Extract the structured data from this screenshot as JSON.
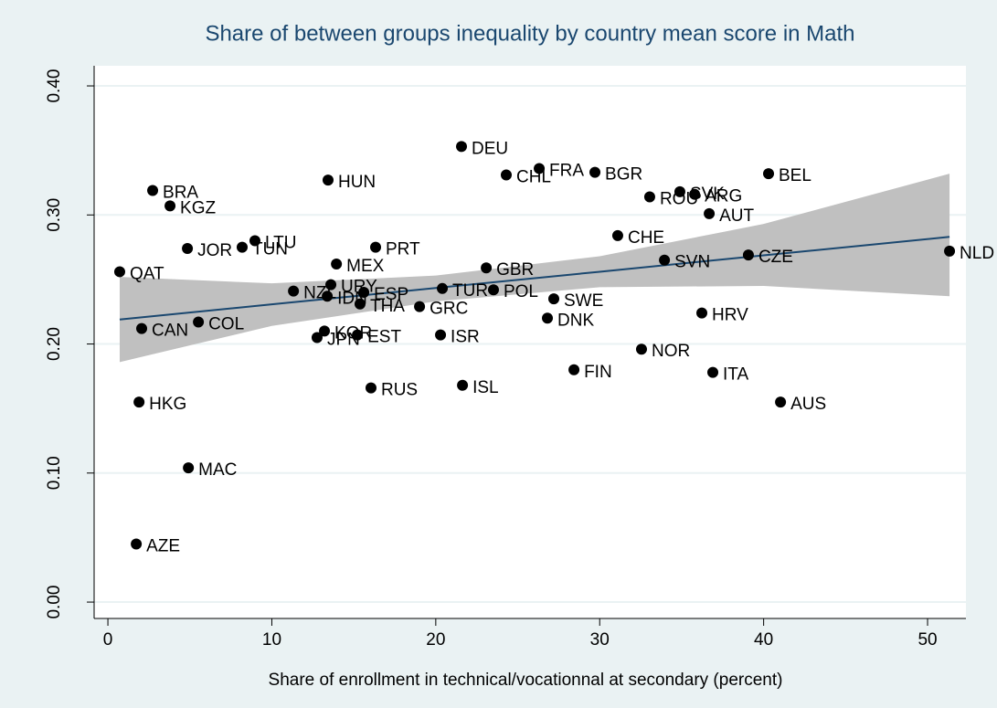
{
  "chart_data": {
    "type": "scatter",
    "title": "Share of between groups inequality by country mean score in Math",
    "xlabel": "Share of enrollment in technical/vocationnal at secondary (percent)",
    "xlim": [
      -0.84,
      52.34
    ],
    "ylim": [
      -0.0127,
      0.4156
    ],
    "xticks": [
      0,
      10,
      20,
      30,
      40,
      50
    ],
    "yticks": [
      {
        "value": 0,
        "label": "0.00"
      },
      {
        "value": 0.1,
        "label": "0.10"
      },
      {
        "value": 0.2,
        "label": "0.20"
      },
      {
        "value": 0.3,
        "label": "0.30"
      },
      {
        "value": 0.4,
        "label": "0.40"
      }
    ],
    "grid": true,
    "color": "#000000",
    "labels": [
      "BRA",
      "KGZ",
      "HUN",
      "DEU",
      "CHL",
      "FRA",
      "BGR",
      "SVK",
      "ROU",
      "ARG",
      "BEL",
      "AUT",
      "JOR",
      "TUN",
      "LTU",
      "PRT",
      "CHE",
      "QAT",
      "MEX",
      "GBR",
      "SVN",
      "CZE",
      "NLD",
      "URY",
      "NZL",
      "IDN",
      "ESP",
      "THA",
      "TUR",
      "POL",
      "GRC",
      "SWE",
      "DNK",
      "HRV",
      "CAN",
      "COL",
      "KOR",
      "JPN",
      "EST",
      "ISR",
      "NOR",
      "FIN",
      "ITA",
      "RUS",
      "ISL",
      "HKG",
      "AUS",
      "MAC",
      "AZE"
    ],
    "x": [
      2.73,
      3.79,
      13.43,
      21.57,
      24.3,
      26.31,
      29.71,
      34.89,
      33.05,
      35.79,
      40.3,
      36.68,
      4.85,
      8.19,
      8.97,
      16.33,
      31.1,
      0.72,
      13.94,
      23.08,
      33.95,
      39.07,
      51.34,
      13.6,
      11.32,
      13.38,
      15.61,
      15.38,
      20.4,
      23.52,
      19.01,
      27.2,
      26.81,
      36.23,
      2.06,
      5.52,
      13.21,
      12.76,
      15.22,
      20.29,
      32.55,
      28.43,
      36.9,
      16.05,
      21.63,
      1.9,
      41.03,
      4.91,
      1.73
    ],
    "values": [
      0.319,
      0.307,
      0.327,
      0.353,
      0.331,
      0.336,
      0.333,
      0.318,
      0.314,
      0.316,
      0.332,
      0.301,
      0.274,
      0.275,
      0.28,
      0.275,
      0.284,
      0.256,
      0.262,
      0.259,
      0.265,
      0.269,
      0.272,
      0.246,
      0.241,
      0.237,
      0.24,
      0.231,
      0.243,
      0.242,
      0.229,
      0.235,
      0.22,
      0.224,
      0.212,
      0.217,
      0.21,
      0.205,
      0.207,
      0.207,
      0.196,
      0.18,
      0.178,
      0.166,
      0.168,
      0.155,
      0.155,
      0.104,
      0.045
    ],
    "fit": {
      "color": "#1a476f",
      "band_color": "#c0c0c0",
      "x": [
        0.72,
        10,
        20,
        30,
        40,
        51.34
      ],
      "values": [
        0.219,
        0.2307,
        0.2434,
        0.256,
        0.2687,
        0.283
      ],
      "lower": [
        0.186,
        0.214,
        0.233,
        0.244,
        0.245,
        0.237
      ],
      "upper": [
        0.252,
        0.247,
        0.253,
        0.268,
        0.293,
        0.332
      ]
    }
  }
}
